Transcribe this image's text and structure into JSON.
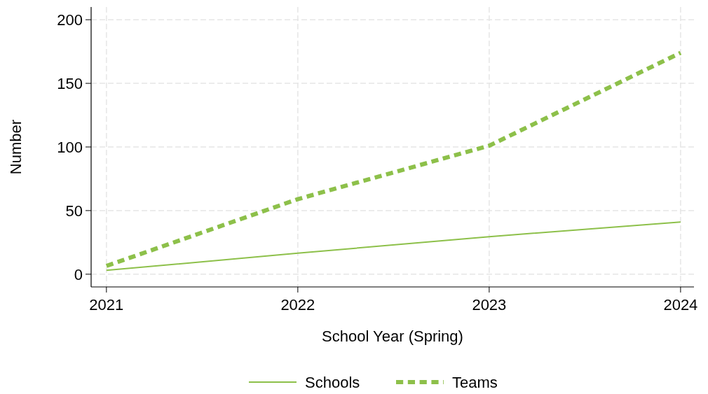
{
  "chart_data": {
    "type": "line",
    "xlabel": "School Year (Spring)",
    "ylabel": "Number",
    "x": [
      2021,
      2022,
      2023,
      2024
    ],
    "series": [
      {
        "name": "Schools",
        "color": "#8dc04a",
        "values": [
          3,
          16.5,
          29.5,
          41
        ],
        "line_style": "solid"
      },
      {
        "name": "Teams",
        "color": "#8dc04a",
        "values": [
          6.5,
          59,
          101,
          174
        ],
        "line_style": "dashed"
      }
    ],
    "xlim": [
      2020.92,
      2024.07
    ],
    "xticks": [
      2021,
      2022,
      2023,
      2024
    ],
    "ylim": [
      -10,
      210
    ],
    "yticks": [
      0,
      50,
      100,
      150,
      200
    ],
    "grid": true,
    "legend": "bottom",
    "marker": "none"
  }
}
